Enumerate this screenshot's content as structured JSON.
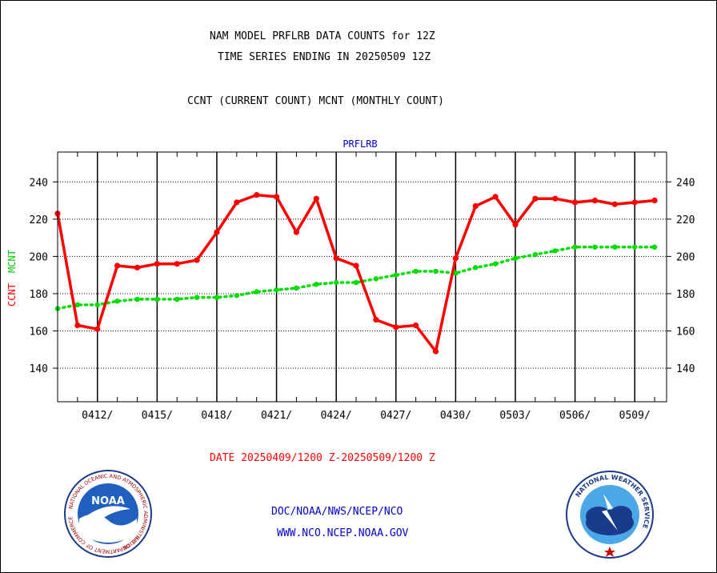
{
  "chart_data": {
    "type": "line",
    "title": "NAM MODEL PRFLRB DATA COUNTS for 12Z",
    "subtitle": "TIME SERIES ENDING IN 20250509 12Z",
    "legend_caption": "CCNT (CURRENT COUNT) MCNT (MONTHLY COUNT)",
    "panel_label": "PRFLRB",
    "ylabel_ccnt": "CCNT",
    "ylabel_mcnt": "MCNT",
    "xlabel": "DATE 20250409/1200 Z-20250509/1200 Z",
    "ylim": [
      122,
      256
    ],
    "yticks": [
      140,
      160,
      180,
      200,
      220,
      240
    ],
    "xlim": [
      0,
      30.6
    ],
    "x_tick_labels": [
      "0412/",
      "0415/",
      "0418/",
      "0421/",
      "0424/",
      "0427/",
      "0430/",
      "0503/",
      "0506/",
      "0509/"
    ],
    "grid": true,
    "colors": {
      "ccnt": "#ff0000",
      "mcnt": "#00dd00",
      "title": "#000000",
      "panel_label": "#0000cc",
      "footer": "#0000cc",
      "xlabel": "#ff0000"
    },
    "series": [
      {
        "name": "CCNT",
        "x": [
          0,
          1,
          2,
          3,
          4,
          5,
          6,
          7,
          8,
          9,
          10,
          11,
          12,
          13,
          14,
          15,
          16,
          17,
          18,
          19,
          20,
          21,
          22,
          23,
          24,
          25,
          26,
          27,
          28,
          29,
          30
        ],
        "values": [
          223,
          163,
          161,
          195,
          194,
          196,
          196,
          198,
          213,
          229,
          233,
          232,
          213,
          231,
          199,
          195,
          166,
          162,
          163,
          149,
          199,
          227,
          232,
          217,
          231,
          231,
          229,
          230,
          228,
          229,
          230
        ]
      },
      {
        "name": "MCNT",
        "x": [
          0,
          1,
          2,
          3,
          4,
          5,
          6,
          7,
          8,
          9,
          10,
          11,
          12,
          13,
          14,
          15,
          16,
          17,
          18,
          19,
          20,
          21,
          22,
          23,
          24,
          25,
          26,
          27,
          28,
          29,
          30
        ],
        "values": [
          172,
          174,
          174,
          176,
          177,
          177,
          177,
          178,
          178,
          179,
          181,
          182,
          183,
          185,
          186,
          186,
          188,
          190,
          192,
          192,
          191,
          194,
          196,
          199,
          201,
          203,
          205,
          205,
          205,
          205,
          205
        ]
      }
    ]
  },
  "footer": {
    "line1": "DOC/NOAA/NWS/NCEP/NCO",
    "line2": "WWW.NCO.NCEP.NOAA.GOV"
  },
  "logos": {
    "noaa": {
      "center_text": "NOAA",
      "ring_text": "NATIONAL OCEANIC AND ATMOSPHERIC ADMINISTRATION",
      "bottom_text": "U.S. DEPARTMENT OF COMMERCE"
    },
    "nws": {
      "ring_text": "NATIONAL WEATHER SERVICE"
    }
  }
}
